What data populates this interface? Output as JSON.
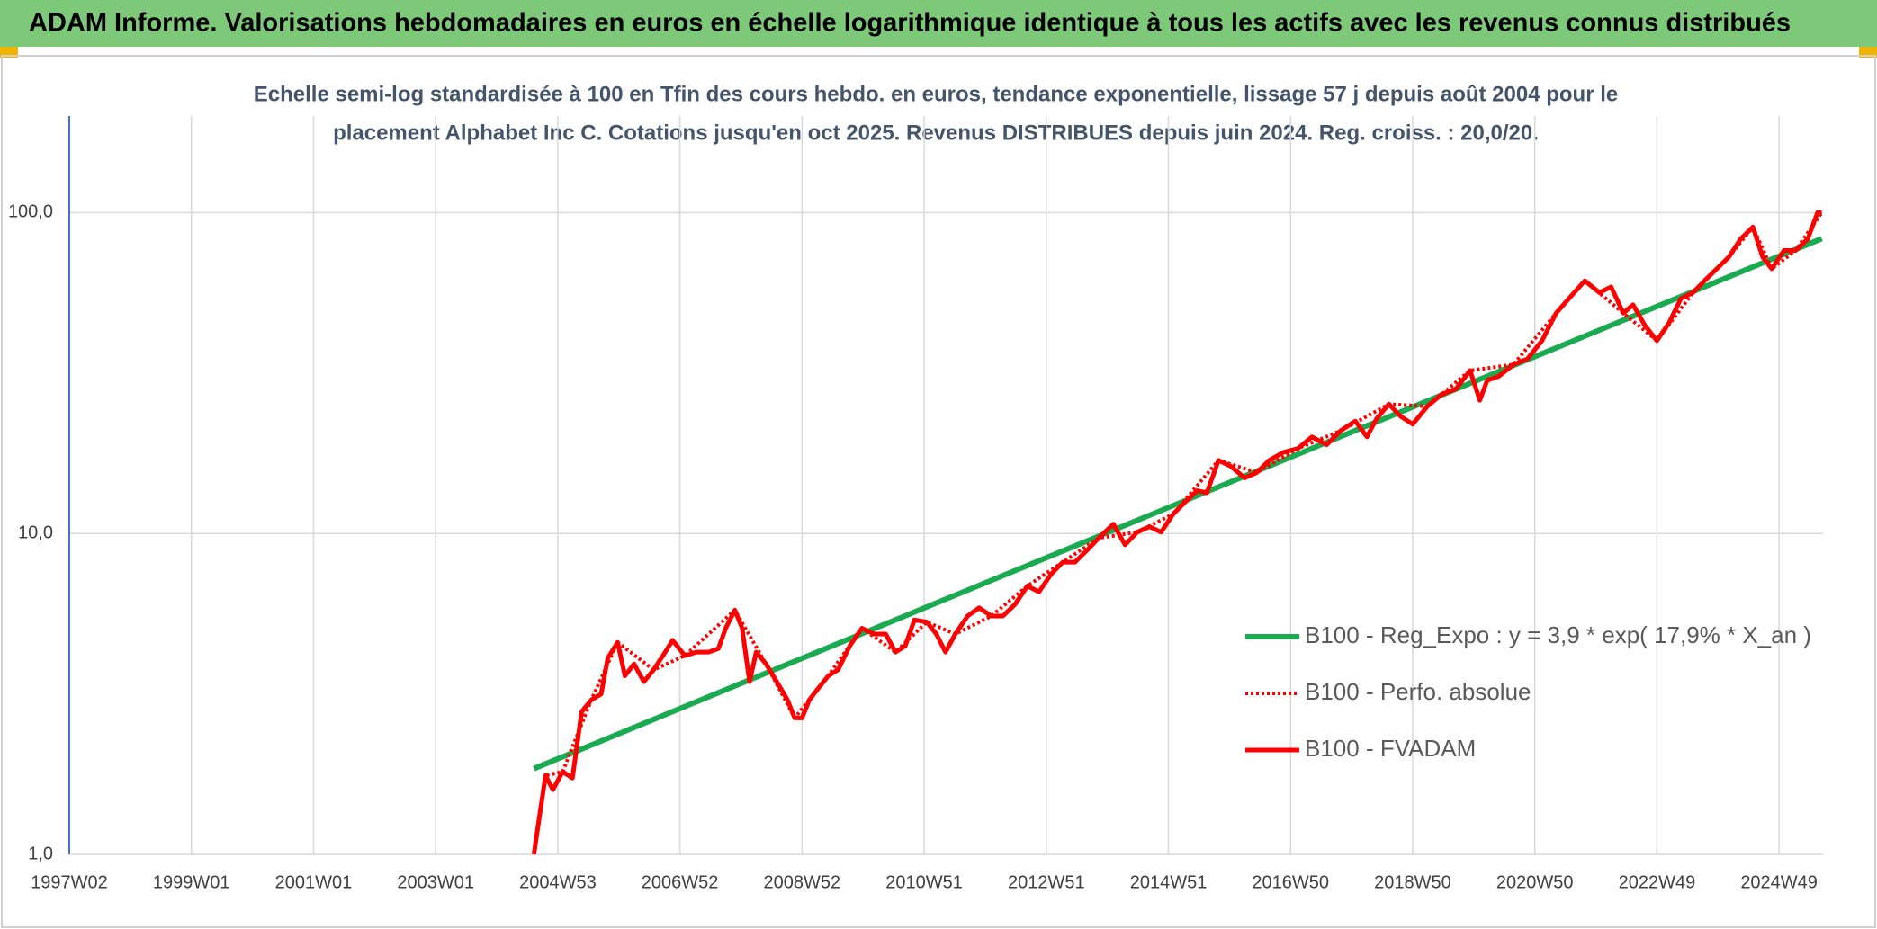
{
  "header": {
    "title": "ADAM Informe. Valorisations hebdomadaires en euros en échelle logarithmique identique à tous les actifs avec les revenus connus distribués"
  },
  "chart_data": {
    "type": "line",
    "subtitle": [
      "Echelle semi-log standardisée à 100 en Tfin des cours hebdo. en euros, tendance exponentielle, lissage 57 j depuis août 2004 pour le",
      "placement Alphabet Inc C. Cotations jusqu'en oct 2025. Revenus DISTRIBUES depuis juin 2024. Reg. croiss. : 20,0/20."
    ],
    "log_scale_y": true,
    "grid": true,
    "ylim": [
      1,
      200
    ],
    "yticks": [
      {
        "value": 1,
        "label": "1,0"
      },
      {
        "value": 10,
        "label": "10,0"
      },
      {
        "value": 100,
        "label": "100,0"
      }
    ],
    "xlim": [
      1997,
      2025.72
    ],
    "xticks": [
      {
        "value": 1997,
        "label": "1997W02"
      },
      {
        "value": 1999,
        "label": "1999W01"
      },
      {
        "value": 2001,
        "label": "2001W01"
      },
      {
        "value": 2003,
        "label": "2003W01"
      },
      {
        "value": 2005,
        "label": "2004W53"
      },
      {
        "value": 2007,
        "label": "2006W52"
      },
      {
        "value": 2009,
        "label": "2008W52"
      },
      {
        "value": 2011,
        "label": "2010W51"
      },
      {
        "value": 2013,
        "label": "2012W51"
      },
      {
        "value": 2015,
        "label": "2014W51"
      },
      {
        "value": 2017,
        "label": "2016W50"
      },
      {
        "value": 2019,
        "label": "2018W50"
      },
      {
        "value": 2021,
        "label": "2020W50"
      },
      {
        "value": 2023,
        "label": "2022W49"
      },
      {
        "value": 2025,
        "label": "2024W49"
      }
    ],
    "series": [
      {
        "name": "B100 - Reg_Expo : y = 3,9 * exp( 17,9% *  X_an )",
        "color": "#1aaa50",
        "dash": "solid",
        "width": 6,
        "x": [
          2004.61,
          2025.7
        ],
        "values": [
          1.85,
          83
        ]
      },
      {
        "name": "B100 - Perfo. absolue",
        "color": "#ff0000",
        "dash": "dotted",
        "width": 4,
        "x": [
          2004.61,
          2004.8,
          2005.08,
          2005.55,
          2005.98,
          2006.57,
          2007.08,
          2007.9,
          2008.41,
          2008.88,
          2009.43,
          2009.98,
          2010.53,
          2011.04,
          2011.51,
          2012.1,
          2012.69,
          2013.27,
          2013.86,
          2014.49,
          2015.08,
          2015.82,
          2016.45,
          2017.12,
          2017.82,
          2018.61,
          2019.24,
          2019.94,
          2020.65,
          2021.35,
          2021.82,
          2022.45,
          2023.0,
          2023.59,
          2024.18,
          2024.57,
          2024.88,
          2025.27,
          2025.7
        ],
        "values": [
          1.0,
          1.76,
          1.81,
          3.03,
          4.58,
          3.76,
          4.16,
          5.77,
          3.92,
          2.66,
          3.6,
          5.07,
          4.27,
          5.3,
          4.86,
          5.53,
          6.86,
          8.14,
          9.68,
          10.1,
          11.5,
          16.9,
          15.5,
          18.4,
          20.9,
          25.3,
          24.9,
          32.2,
          33.6,
          48.6,
          61.3,
          48.6,
          39.9,
          56.3,
          72.8,
          90.2,
          66.8,
          76.2,
          100
        ]
      },
      {
        "name": "B100 - FVADAM",
        "color": "#ff0000",
        "dash": "solid",
        "width": 5,
        "x": [
          2004.61,
          2004.65,
          2004.8,
          2004.92,
          2005.08,
          2005.24,
          2005.39,
          2005.55,
          2005.71,
          2005.82,
          2005.98,
          2006.1,
          2006.25,
          2006.41,
          2006.57,
          2006.76,
          2006.88,
          2007.08,
          2007.27,
          2007.47,
          2007.63,
          2007.75,
          2007.9,
          2008.02,
          2008.14,
          2008.25,
          2008.41,
          2008.61,
          2008.76,
          2008.88,
          2009.0,
          2009.12,
          2009.27,
          2009.43,
          2009.59,
          2009.78,
          2009.98,
          2010.18,
          2010.37,
          2010.53,
          2010.69,
          2010.84,
          2011.04,
          2011.2,
          2011.35,
          2011.51,
          2011.71,
          2011.9,
          2012.1,
          2012.29,
          2012.49,
          2012.69,
          2012.88,
          2013.08,
          2013.27,
          2013.47,
          2013.67,
          2013.86,
          2014.1,
          2014.29,
          2014.49,
          2014.69,
          2014.88,
          2015.08,
          2015.27,
          2015.47,
          2015.63,
          2015.82,
          2016.02,
          2016.25,
          2016.45,
          2016.65,
          2016.88,
          2017.12,
          2017.35,
          2017.59,
          2017.82,
          2018.06,
          2018.25,
          2018.41,
          2018.61,
          2018.8,
          2019.0,
          2019.24,
          2019.47,
          2019.71,
          2019.94,
          2020.1,
          2020.22,
          2020.41,
          2020.65,
          2020.88,
          2021.12,
          2021.35,
          2021.59,
          2021.82,
          2022.06,
          2022.25,
          2022.45,
          2022.61,
          2022.8,
          2023.0,
          2023.2,
          2023.39,
          2023.59,
          2023.78,
          2023.98,
          2024.18,
          2024.37,
          2024.57,
          2024.73,
          2024.88,
          2025.08,
          2025.27,
          2025.47,
          2025.63,
          2025.7
        ],
        "values": [
          1.0,
          1.13,
          1.76,
          1.59,
          1.81,
          1.73,
          2.78,
          3.03,
          3.16,
          4.09,
          4.58,
          3.6,
          3.92,
          3.45,
          3.76,
          4.27,
          4.65,
          4.16,
          4.27,
          4.27,
          4.38,
          5.07,
          5.77,
          5.07,
          3.45,
          4.27,
          3.92,
          3.39,
          3.03,
          2.66,
          2.66,
          3.03,
          3.3,
          3.6,
          3.76,
          4.46,
          5.07,
          4.86,
          4.86,
          4.27,
          4.46,
          5.38,
          5.3,
          4.86,
          4.27,
          4.86,
          5.53,
          5.87,
          5.53,
          5.53,
          6.02,
          6.86,
          6.58,
          7.47,
          8.14,
          8.14,
          8.88,
          9.68,
          10.7,
          9.22,
          10.1,
          10.5,
          10.1,
          11.5,
          12.5,
          13.6,
          13.4,
          16.9,
          16.2,
          14.9,
          15.5,
          16.9,
          17.9,
          18.4,
          20.0,
          18.9,
          20.9,
          22.4,
          20.0,
          22.8,
          25.3,
          23.2,
          21.9,
          24.9,
          27.1,
          28.2,
          32.2,
          26.0,
          30.0,
          30.9,
          33.6,
          35.0,
          39.9,
          48.6,
          54.8,
          61.3,
          56.3,
          58.7,
          48.6,
          51.6,
          44.6,
          39.9,
          45.4,
          53.9,
          56.3,
          61.3,
          66.8,
          72.8,
          82.7,
          90.2,
          72.8,
          66.8,
          76.2,
          76.2,
          82.7,
          100.0,
          100
        ]
      }
    ]
  }
}
